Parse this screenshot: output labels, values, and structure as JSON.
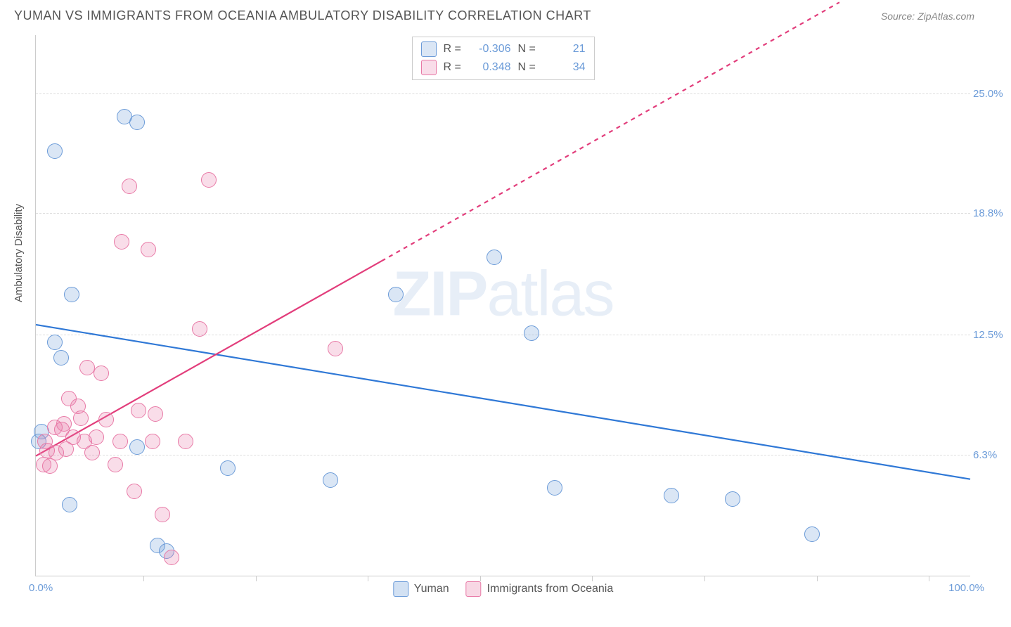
{
  "header": {
    "title": "YUMAN VS IMMIGRANTS FROM OCEANIA AMBULATORY DISABILITY CORRELATION CHART",
    "source": "Source: ZipAtlas.com"
  },
  "watermark": {
    "part1": "ZIP",
    "part2": "atlas"
  },
  "chart": {
    "type": "scatter",
    "ylabel": "Ambulatory Disability",
    "background_color": "#ffffff",
    "grid_color": "#dddddd",
    "border_color": "#cccccc",
    "xlim": [
      0,
      100
    ],
    "ylim": [
      0,
      28
    ],
    "xaxis_labels": {
      "min": "0.0%",
      "max": "100.0%"
    },
    "xtick_positions": [
      11.5,
      23.5,
      35.5,
      47.5,
      59.5,
      71.5,
      83.5,
      95.5
    ],
    "yticks": [
      {
        "value": 6.3,
        "label": "6.3%"
      },
      {
        "value": 12.5,
        "label": "12.5%"
      },
      {
        "value": 18.8,
        "label": "18.8%"
      },
      {
        "value": 25.0,
        "label": "25.0%"
      }
    ],
    "marker": {
      "radius": 11,
      "stroke_width": 1.2,
      "fill_opacity": 0.25
    },
    "label_fontsize": 15,
    "tick_label_color": "#6b9bd8",
    "series": [
      {
        "name": "Yuman",
        "color_stroke": "#6b9bd8",
        "color_fill": "rgba(107,155,216,0.25)",
        "R": "-0.306",
        "N": "21",
        "trend": {
          "color": "#2f78d6",
          "width": 2.2,
          "solid": {
            "x1": 0,
            "y1": 13.0,
            "x2": 100,
            "y2": 5.0
          },
          "dashed": null
        },
        "points": [
          {
            "x": 2.0,
            "y": 22.0
          },
          {
            "x": 9.5,
            "y": 23.8
          },
          {
            "x": 10.8,
            "y": 23.5
          },
          {
            "x": 3.8,
            "y": 14.6
          },
          {
            "x": 2.0,
            "y": 12.1
          },
          {
            "x": 2.7,
            "y": 11.3
          },
          {
            "x": 0.6,
            "y": 7.5
          },
          {
            "x": 0.3,
            "y": 7.0
          },
          {
            "x": 10.8,
            "y": 6.7
          },
          {
            "x": 3.6,
            "y": 3.7
          },
          {
            "x": 20.5,
            "y": 5.6
          },
          {
            "x": 31.5,
            "y": 5.0
          },
          {
            "x": 38.5,
            "y": 14.6
          },
          {
            "x": 49.0,
            "y": 16.5
          },
          {
            "x": 53.0,
            "y": 12.6
          },
          {
            "x": 55.5,
            "y": 4.6
          },
          {
            "x": 68.0,
            "y": 4.2
          },
          {
            "x": 74.5,
            "y": 4.0
          },
          {
            "x": 83.0,
            "y": 2.2
          },
          {
            "x": 13.0,
            "y": 1.6
          },
          {
            "x": 14.0,
            "y": 1.3
          }
        ]
      },
      {
        "name": "Immigrants from Oceania",
        "color_stroke": "#e879a6",
        "color_fill": "rgba(232,121,166,0.25)",
        "R": "0.348",
        "N": "34",
        "trend": {
          "color": "#e23d7b",
          "width": 2.2,
          "solid": {
            "x1": 0,
            "y1": 6.2,
            "x2": 37,
            "y2": 16.3
          },
          "dashed": {
            "x1": 37,
            "y1": 16.3,
            "x2": 86,
            "y2": 29.7
          }
        },
        "points": [
          {
            "x": 10.0,
            "y": 20.2
          },
          {
            "x": 18.5,
            "y": 20.5
          },
          {
            "x": 9.2,
            "y": 17.3
          },
          {
            "x": 12.0,
            "y": 16.9
          },
          {
            "x": 17.5,
            "y": 12.8
          },
          {
            "x": 32.0,
            "y": 11.8
          },
          {
            "x": 5.5,
            "y": 10.8
          },
          {
            "x": 7.0,
            "y": 10.5
          },
          {
            "x": 3.5,
            "y": 9.2
          },
          {
            "x": 11.0,
            "y": 8.6
          },
          {
            "x": 12.8,
            "y": 8.4
          },
          {
            "x": 4.8,
            "y": 8.2
          },
          {
            "x": 2.0,
            "y": 7.7
          },
          {
            "x": 2.8,
            "y": 7.6
          },
          {
            "x": 4.0,
            "y": 7.2
          },
          {
            "x": 5.2,
            "y": 7.0
          },
          {
            "x": 6.5,
            "y": 7.2
          },
          {
            "x": 9.0,
            "y": 7.0
          },
          {
            "x": 12.5,
            "y": 7.0
          },
          {
            "x": 16.0,
            "y": 7.0
          },
          {
            "x": 1.2,
            "y": 6.5
          },
          {
            "x": 2.2,
            "y": 6.4
          },
          {
            "x": 3.2,
            "y": 6.6
          },
          {
            "x": 6.0,
            "y": 6.4
          },
          {
            "x": 8.5,
            "y": 5.8
          },
          {
            "x": 0.8,
            "y": 5.8
          },
          {
            "x": 1.5,
            "y": 5.7
          },
          {
            "x": 10.5,
            "y": 4.4
          },
          {
            "x": 13.5,
            "y": 3.2
          },
          {
            "x": 14.5,
            "y": 1.0
          },
          {
            "x": 3.0,
            "y": 7.9
          },
          {
            "x": 4.5,
            "y": 8.8
          },
          {
            "x": 7.5,
            "y": 8.1
          },
          {
            "x": 1.0,
            "y": 7.0
          }
        ]
      }
    ]
  },
  "legend_bottom": [
    {
      "swatch_stroke": "#6b9bd8",
      "swatch_fill": "rgba(107,155,216,0.3)",
      "label": "Yuman"
    },
    {
      "swatch_stroke": "#e879a6",
      "swatch_fill": "rgba(232,121,166,0.3)",
      "label": "Immigrants from Oceania"
    }
  ],
  "legend_top_labels": {
    "R": "R =",
    "N": "N ="
  }
}
